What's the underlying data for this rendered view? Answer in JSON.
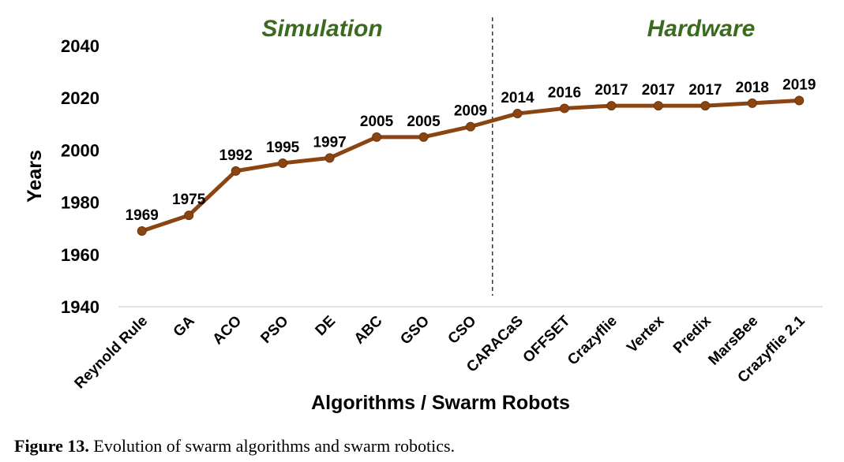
{
  "chart_data": {
    "type": "line",
    "xlabel": "Algorithms / Swarm Robots",
    "ylabel": "Years",
    "ylim": [
      1940,
      2040
    ],
    "yticks": [
      1940,
      1960,
      1980,
      2000,
      2020,
      2040
    ],
    "categories": [
      "Reynold Rule",
      "GA",
      "ACO",
      "PSO",
      "DE",
      "ABC",
      "GSO",
      "CSO",
      "CARACaS",
      "OFFSET",
      "Crazyflie",
      "Vertex",
      "Predix",
      "MarsBee",
      "Crazyflie 2.1"
    ],
    "series": [
      {
        "values": [
          1969,
          1975,
          1992,
          1995,
          1997,
          2005,
          2005,
          2009,
          2014,
          2016,
          2017,
          2017,
          2017,
          2018,
          2019
        ]
      }
    ],
    "data_labels": [
      "1969",
      "1975",
      "1992",
      "1995",
      "1997",
      "2005",
      "2005",
      "2009",
      "2014",
      "2016",
      "2017",
      "2017",
      "2017",
      "2018",
      "2019"
    ],
    "regions": [
      {
        "label": "Simulation"
      },
      {
        "label": "Hardware"
      }
    ],
    "grid": false,
    "legend": "none"
  },
  "caption": {
    "label": "Figure 13.",
    "text": " Evolution of swarm algorithms and swarm robotics."
  },
  "colors": {
    "line": "#8B4513",
    "marker": "#8B4513",
    "region_label": "#3a6b1e",
    "axis": "#d9d9d9",
    "divider": "#333333"
  }
}
